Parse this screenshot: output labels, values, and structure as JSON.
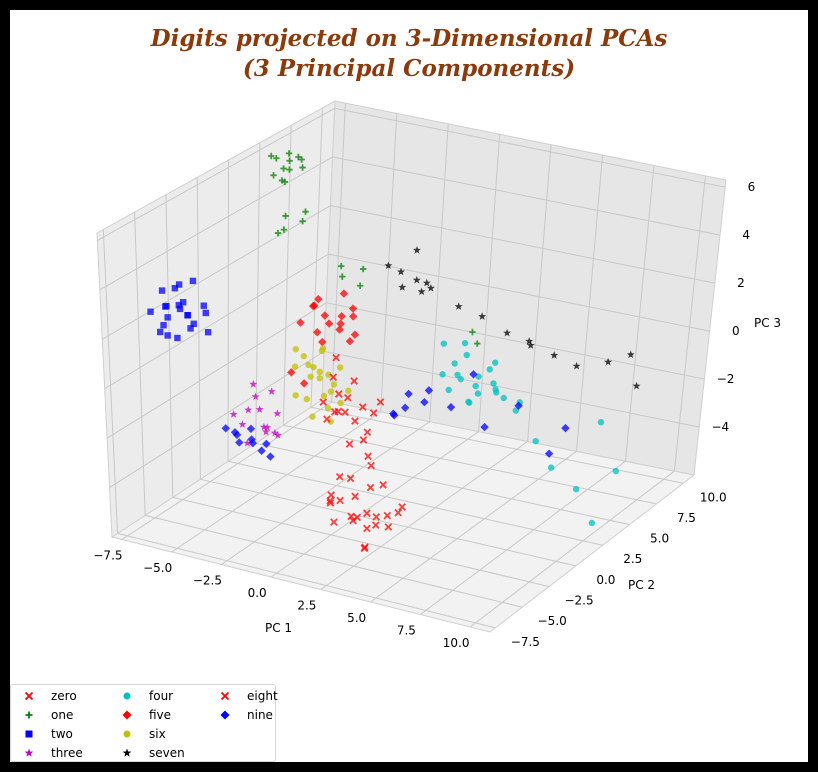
{
  "chart_data": {
    "type": "scatter",
    "title_line1": "Digits projected on 3-Dimensional PCAs",
    "title_line2": "(3 Principal Components)",
    "xlabel": "PC 1",
    "ylabel": "PC 2",
    "zlabel": "PC 3",
    "x_ticks": [
      "−7.5",
      "−5.0",
      "−2.5",
      "0.0",
      "2.5",
      "5.0",
      "7.5",
      "10.0"
    ],
    "y_ticks": [
      "−7.5",
      "−5.0",
      "−2.5",
      "0.0",
      "2.5",
      "5.0",
      "7.5",
      "10.0"
    ],
    "z_ticks": [
      "−4",
      "−2",
      "0",
      "2",
      "4",
      "6"
    ],
    "xlim": [
      -8,
      11
    ],
    "ylim": [
      -8,
      11
    ],
    "zlim": [
      -6,
      6.3
    ],
    "grid": true,
    "legend_position": "bottom-left",
    "series": [
      {
        "name": "zero",
        "color": "#ff0000",
        "marker": "x",
        "points": [
          [
            2,
            -5,
            -3.5
          ],
          [
            2.6,
            -4.6,
            -4.2
          ],
          [
            3,
            -5.4,
            -3
          ],
          [
            3.3,
            -4.2,
            -4.5
          ],
          [
            2.2,
            -6,
            -4
          ],
          [
            3.8,
            -5,
            -3.8
          ],
          [
            1.7,
            -4.4,
            -2.8
          ],
          [
            2.9,
            -3.8,
            -3.2
          ],
          [
            4,
            -4.6,
            -2.6
          ],
          [
            3.2,
            -6.2,
            -3.5
          ],
          [
            2.5,
            -3.6,
            -5
          ],
          [
            3.6,
            -5.8,
            -4.8
          ],
          [
            1.9,
            -5.6,
            -3.1
          ],
          [
            4.3,
            -3.9,
            -3.9
          ],
          [
            3,
            -4.8,
            -5.3
          ],
          [
            2.7,
            -5.2,
            -2.4
          ],
          [
            3.4,
            -3.3,
            -4.4
          ],
          [
            2.1,
            -4.1,
            -4.6
          ],
          [
            3.9,
            -6,
            -3.3
          ],
          [
            4.5,
            -5.2,
            -4
          ],
          [
            2.4,
            -6.6,
            -2.9
          ],
          [
            3.1,
            -4,
            -2.2
          ],
          [
            4.8,
            -4.4,
            -3.4
          ],
          [
            1.5,
            -5,
            -3.7
          ]
        ]
      },
      {
        "name": "one",
        "color": "#008000",
        "marker": "+",
        "points": [
          [
            -6,
            5.5,
            4.8
          ],
          [
            -5.5,
            6,
            5.2
          ],
          [
            -6.2,
            4.8,
            5.5
          ],
          [
            -5.8,
            5.2,
            4.4
          ],
          [
            -5.2,
            5.8,
            4.9
          ],
          [
            -6.4,
            5.6,
            5.1
          ],
          [
            -5.6,
            4.6,
            4.7
          ],
          [
            -5,
            5.4,
            5.4
          ],
          [
            -6.1,
            6.2,
            4.5
          ],
          [
            -5.4,
            5,
            5.7
          ],
          [
            -5.9,
            5.9,
            5.0
          ],
          [
            -6.3,
            5.1,
            4.6
          ],
          [
            -4.6,
            3,
            4
          ],
          [
            -4.2,
            3.8,
            3.6
          ],
          [
            -4.8,
            2.6,
            3.4
          ],
          [
            -3.8,
            3.4,
            4.2
          ],
          [
            -5,
            3.5,
            3.2
          ],
          [
            -3,
            5,
            1.2
          ],
          [
            -2.2,
            5.5,
            1.5
          ],
          [
            -2.8,
            4.6,
            1.8
          ],
          [
            -2,
            4.8,
            1.1
          ],
          [
            2,
            8,
            -1.5
          ],
          [
            1.5,
            8.5,
            -1.3
          ]
        ]
      },
      {
        "name": "two",
        "color": "#0000ff",
        "marker": "s",
        "points": [
          [
            -7.2,
            -3.5,
            2
          ],
          [
            -6.8,
            -3,
            1.8
          ],
          [
            -6.4,
            -3.8,
            2.3
          ],
          [
            -7,
            -4.2,
            1.5
          ],
          [
            -6.2,
            -3.2,
            1.2
          ],
          [
            -7.5,
            -3.3,
            2.5
          ],
          [
            -6.6,
            -4.5,
            2.0
          ],
          [
            -5.8,
            -3.6,
            1.6
          ],
          [
            -7.3,
            -4,
            1.1
          ],
          [
            -6,
            -4.1,
            2.6
          ],
          [
            -6.9,
            -2.8,
            2.7
          ],
          [
            -5.5,
            -3,
            1.9
          ],
          [
            -6.3,
            -2.6,
            2.9
          ],
          [
            -7.6,
            -2.9,
            1.7
          ],
          [
            -6.1,
            -4.6,
            1.3
          ],
          [
            -7.1,
            -3.7,
            0.9
          ],
          [
            -5.7,
            -4.3,
            2.2
          ],
          [
            -6.7,
            -2.5,
            1.4
          ],
          [
            -5.3,
            -3.5,
            2.4
          ],
          [
            -7.4,
            -4.6,
            2.1
          ],
          [
            -6.5,
            -3.9,
            3.0
          ],
          [
            -5.6,
            -2.7,
            1.0
          ]
        ]
      },
      {
        "name": "three",
        "color": "#c000c0",
        "marker": "*",
        "points": [
          [
            -3,
            -3,
            -1.5
          ],
          [
            -2.6,
            -3.4,
            -2.0
          ],
          [
            -3.4,
            -2.6,
            -1.2
          ],
          [
            -2.2,
            -3.8,
            -1.8
          ],
          [
            -3.8,
            -3.2,
            -2.2
          ],
          [
            -2.8,
            -2.2,
            -1.0
          ],
          [
            -3.2,
            -3.9,
            -2.6
          ],
          [
            -2.4,
            -2.8,
            -2.4
          ],
          [
            -3.6,
            -2.4,
            -0.8
          ],
          [
            -2,
            -3.2,
            -1.4
          ],
          [
            -4,
            -3.6,
            -1.7
          ],
          [
            -2.9,
            -4.2,
            -1.1
          ],
          [
            -3.3,
            -2,
            -2.8
          ],
          [
            -1.8,
            -3.6,
            -2.1
          ]
        ]
      },
      {
        "name": "four",
        "color": "#00c0c0",
        "marker": "o",
        "points": [
          [
            2.5,
            5,
            -1.2
          ],
          [
            3,
            4.6,
            -1.6
          ],
          [
            3.4,
            5.2,
            -2.0
          ],
          [
            2.8,
            5.6,
            -1.0
          ],
          [
            3.8,
            4.8,
            -1.4
          ],
          [
            4.2,
            5.4,
            -1.8
          ],
          [
            3.6,
            4.2,
            -2.3
          ],
          [
            2.2,
            4.4,
            -1.5
          ],
          [
            4.5,
            4.6,
            -0.9
          ],
          [
            3.1,
            5.9,
            -2.6
          ],
          [
            4,
            6,
            -1.2
          ],
          [
            2.7,
            4,
            -1.9
          ],
          [
            4.8,
            5.2,
            -2.2
          ],
          [
            3.3,
            3.8,
            -1.1
          ],
          [
            5,
            4.2,
            -1.6
          ],
          [
            3.9,
            3.6,
            -2.0
          ],
          [
            5.5,
            5,
            -2.5
          ],
          [
            6,
            4.5,
            -1.9
          ],
          [
            5.2,
            3.8,
            -1.3
          ],
          [
            7,
            4,
            -3.1
          ],
          [
            8,
            3.5,
            -3.8
          ],
          [
            9.5,
            3,
            -4.2
          ],
          [
            10.5,
            2.5,
            -5.2
          ],
          [
            11,
            4,
            -3.5
          ],
          [
            9.8,
            5,
            -2.1
          ],
          [
            2,
            5,
            -0.5
          ],
          [
            2.4,
            6.2,
            -0.8
          ]
        ]
      },
      {
        "name": "five",
        "color": "#ff0000",
        "marker": "D",
        "points": [
          [
            -2,
            1.5,
            1
          ],
          [
            -1.5,
            2,
            0.6
          ],
          [
            -2.4,
            1.2,
            1.4
          ],
          [
            -1.8,
            0.8,
            0.2
          ],
          [
            -1.2,
            1.6,
            1.1
          ],
          [
            -2.2,
            2.2,
            0.4
          ],
          [
            -1,
            1,
            0.8
          ],
          [
            -2.6,
            1.8,
            0.1
          ],
          [
            -1.6,
            2.6,
            1.6
          ],
          [
            -0.8,
            2,
            0.3
          ],
          [
            -2,
            0.6,
            1.7
          ],
          [
            -1.3,
            2.4,
            -0.2
          ],
          [
            -2.8,
            2.4,
            1.2
          ],
          [
            -3,
            0,
            -1
          ],
          [
            -2.6,
            0.4,
            -1.5
          ],
          [
            -1.4,
            3,
            0.9
          ],
          [
            -0.5,
            1.4,
            1.3
          ],
          [
            -3.2,
            1.4,
            0.5
          ]
        ]
      },
      {
        "name": "six",
        "color": "#c0c000",
        "marker": "o",
        "points": [
          [
            -1,
            -1,
            -0.5
          ],
          [
            -0.6,
            -1.4,
            -1.0
          ],
          [
            -1.4,
            -0.8,
            -0.2
          ],
          [
            -0.8,
            -0.4,
            -1.2
          ],
          [
            -1.2,
            -1.6,
            0.2
          ],
          [
            -0.4,
            -0.8,
            -0.7
          ],
          [
            -1.6,
            -1.2,
            -1.4
          ],
          [
            -0.2,
            -1.6,
            0.0
          ],
          [
            -1.8,
            -0.4,
            -0.8
          ],
          [
            -0.9,
            -2,
            -1.7
          ],
          [
            -0.5,
            0,
            -0.3
          ],
          [
            -1.3,
            -1.8,
            0.6
          ],
          [
            0,
            -1,
            -1.3
          ],
          [
            -2,
            -1.4,
            -0.1
          ],
          [
            -1.1,
            -0.2,
            -2.0
          ],
          [
            -0.3,
            -2.2,
            0.3
          ],
          [
            -1.7,
            -2.0,
            -1.0
          ],
          [
            -0.7,
            -1.1,
            0.8
          ],
          [
            0.2,
            -0.6,
            -0.9
          ],
          [
            -2.2,
            -0.9,
            0.4
          ],
          [
            -1.5,
            0.2,
            0.1
          ],
          [
            -0.1,
            -1.8,
            -1.8
          ]
        ]
      },
      {
        "name": "seven",
        "color": "#000000",
        "marker": "*",
        "points": [
          [
            0,
            5,
            2
          ],
          [
            0.5,
            5.5,
            1.6
          ],
          [
            -0.4,
            4.6,
            2.3
          ],
          [
            1,
            5,
            1.4
          ],
          [
            0.3,
            6,
            2.6
          ],
          [
            -0.2,
            5.4,
            1.2
          ],
          [
            1.4,
            4.8,
            1.9
          ],
          [
            0.8,
            6.2,
            1.1
          ],
          [
            2,
            6.5,
            0.5
          ],
          [
            3,
            6.8,
            0.2
          ],
          [
            4,
            7.2,
            -0.4
          ],
          [
            5,
            7.5,
            -0.8
          ],
          [
            6,
            7.8,
            -1.1
          ],
          [
            7,
            8,
            -1.4
          ],
          [
            8.5,
            8.2,
            -1.0
          ],
          [
            9.5,
            8.5,
            -0.6
          ],
          [
            10,
            8,
            -1.6
          ],
          [
            5.5,
            6.5,
            -0.2
          ]
        ]
      },
      {
        "name": "eight",
        "color": "#ff0000",
        "marker": "x",
        "points": [
          [
            0.5,
            -2,
            -0.5
          ],
          [
            1,
            -2.4,
            -1.0
          ],
          [
            0.2,
            -1.6,
            -1.4
          ],
          [
            1.4,
            -2.8,
            -0.2
          ],
          [
            0.8,
            -1.2,
            -1.8
          ],
          [
            1.8,
            -2.2,
            -0.7
          ],
          [
            0.4,
            -3,
            -1.2
          ],
          [
            1.2,
            -1.8,
            0.1
          ],
          [
            2.2,
            -2.6,
            -1.5
          ],
          [
            0.6,
            -2.6,
            0.4
          ],
          [
            1.6,
            -3.2,
            -1.9
          ],
          [
            2,
            -1.6,
            -1.1
          ],
          [
            -0.2,
            -2.2,
            -0.9
          ],
          [
            2.6,
            -2,
            -0.4
          ],
          [
            1.1,
            -3.5,
            -0.6
          ],
          [
            0,
            -1.2,
            0.6
          ],
          [
            2.4,
            -3,
            -2.3
          ],
          [
            1.3,
            -1.4,
            -2.4
          ]
        ]
      },
      {
        "name": "nine",
        "color": "#0000ff",
        "marker": "D",
        "points": [
          [
            -4.5,
            -2.5,
            -3
          ],
          [
            -4,
            -2,
            -3.4
          ],
          [
            -3.6,
            -2.8,
            -2.9
          ],
          [
            -4.8,
            -1.8,
            -3.6
          ],
          [
            -3.2,
            -2.2,
            -3.2
          ],
          [
            -4.2,
            -3.2,
            -2.6
          ],
          [
            -3.8,
            -1.6,
            -3.8
          ],
          [
            -5,
            -2.6,
            -2.8
          ],
          [
            -2.8,
            -2.6,
            -3.5
          ],
          [
            -4.4,
            -1.4,
            -3.1
          ],
          [
            1.5,
            2.5,
            -1.8
          ],
          [
            2,
            3,
            -2.2
          ],
          [
            1,
            2,
            -2.6
          ],
          [
            2.6,
            2.4,
            -1.4
          ],
          [
            1.8,
            1.6,
            -2.0
          ],
          [
            3,
            3.6,
            -2.4
          ],
          [
            4,
            4,
            -1.0
          ],
          [
            5,
            3,
            -2.6
          ],
          [
            6.5,
            3.5,
            -1.6
          ],
          [
            8.5,
            2.5,
            -2.8
          ],
          [
            9,
            3.2,
            -1.9
          ],
          [
            0.5,
            2.8,
            -2.9
          ]
        ]
      }
    ]
  }
}
